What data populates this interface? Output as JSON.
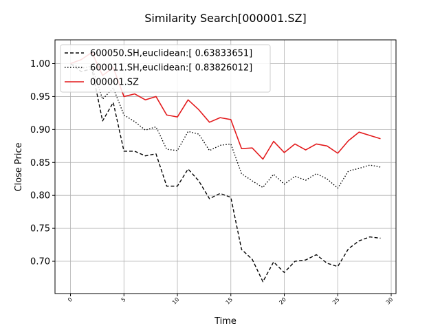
{
  "chart_data": {
    "type": "line",
    "title": "Similarity Search[000001.SZ]",
    "xlabel": "Time",
    "ylabel": "Close Price",
    "xlim": [
      -1.45,
      30.45
    ],
    "ylim": [
      0.651,
      1.036
    ],
    "xticks": [
      0,
      5,
      10,
      15,
      20,
      25,
      30
    ],
    "yticks": [
      0.7,
      0.75,
      0.8,
      0.85,
      0.9,
      0.95,
      1.0
    ],
    "grid": true,
    "legend_position": "top-left",
    "x": [
      0,
      1,
      2,
      3,
      4,
      5,
      6,
      7,
      8,
      9,
      10,
      11,
      12,
      13,
      14,
      15,
      16,
      17,
      18,
      19,
      20,
      21,
      22,
      23,
      24,
      25,
      26,
      27,
      28,
      29
    ],
    "series": [
      {
        "name": "600050.SH,euclidean:[ 0.63833651]",
        "color": "#000000",
        "dash": "dashed",
        "values": [
          1.0,
          0.988,
          0.992,
          0.913,
          0.941,
          0.867,
          0.867,
          0.86,
          0.863,
          0.814,
          0.814,
          0.84,
          0.822,
          0.795,
          0.803,
          0.797,
          0.718,
          0.703,
          0.669,
          0.699,
          0.683,
          0.7,
          0.702,
          0.71,
          0.697,
          0.692,
          0.719,
          0.731,
          0.737,
          0.735
        ]
      },
      {
        "name": "600011.SH,euclidean:[ 0.83826012]",
        "color": "#000000",
        "dash": "dotted",
        "values": [
          1.0,
          0.993,
          0.996,
          0.946,
          0.963,
          0.922,
          0.912,
          0.899,
          0.904,
          0.87,
          0.868,
          0.897,
          0.893,
          0.868,
          0.876,
          0.878,
          0.833,
          0.822,
          0.812,
          0.832,
          0.817,
          0.829,
          0.823,
          0.833,
          0.825,
          0.811,
          0.837,
          0.841,
          0.846,
          0.843
        ]
      },
      {
        "name": "000001.SZ",
        "color": "#e31a1c",
        "dash": "solid",
        "values": [
          1.0,
          1.006,
          1.017,
          0.982,
          0.994,
          0.95,
          0.954,
          0.945,
          0.95,
          0.922,
          0.919,
          0.945,
          0.93,
          0.911,
          0.918,
          0.915,
          0.871,
          0.872,
          0.855,
          0.882,
          0.865,
          0.878,
          0.869,
          0.878,
          0.875,
          0.864,
          0.883,
          0.896,
          0.891,
          0.886
        ]
      }
    ]
  }
}
